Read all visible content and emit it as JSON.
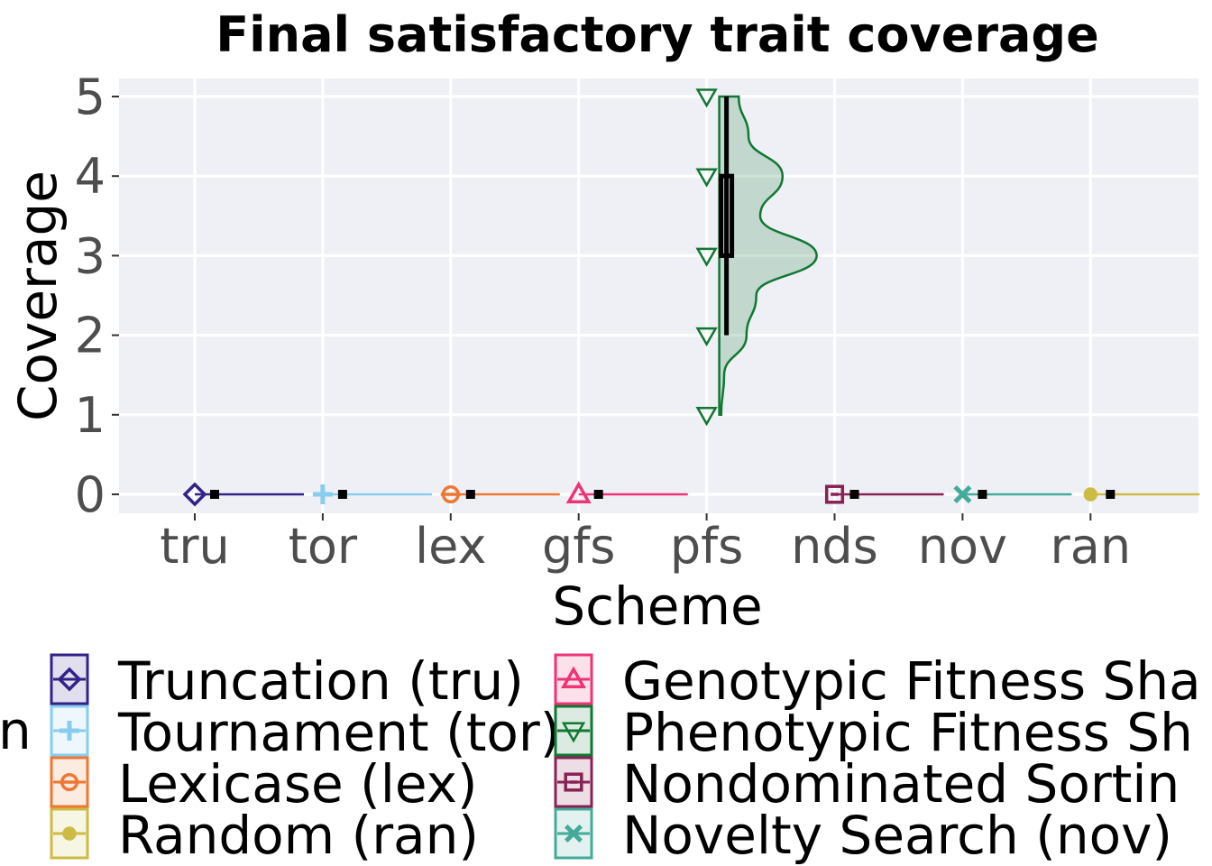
{
  "chart_data": {
    "type": "violin",
    "title": "Final satisfactory trait coverage",
    "xlabel": "Scheme",
    "ylabel": "Coverage",
    "ylim": [
      0,
      5
    ],
    "yticks": [
      "0",
      "1",
      "2",
      "3",
      "4",
      "5"
    ],
    "categories": [
      "tru",
      "tor",
      "lex",
      "gfs",
      "pfs",
      "nds",
      "nov",
      "ran"
    ],
    "series": [
      {
        "name": "Truncation (tru)",
        "key": "tru",
        "color": "#332288",
        "shape": "diamond",
        "points": [
          0
        ],
        "box": {
          "min": 0,
          "q1": 0,
          "median": 0,
          "q3": 0,
          "max": 0
        }
      },
      {
        "name": "Tournament (tor)",
        "key": "tor",
        "color": "#88CCEE",
        "shape": "plus",
        "points": [
          0
        ],
        "box": {
          "min": 0,
          "q1": 0,
          "median": 0,
          "q3": 0,
          "max": 0
        }
      },
      {
        "name": "Lexicase (lex)",
        "key": "lex",
        "color": "#EE7733",
        "shape": "circle-bar",
        "points": [
          0
        ],
        "box": {
          "min": 0,
          "q1": 0,
          "median": 0,
          "q3": 0,
          "max": 0
        }
      },
      {
        "name": "Genotypic Fitness Sharing (gfs)",
        "key": "gfs",
        "color": "#EE3377",
        "shape": "triangle-up",
        "points": [
          0
        ],
        "box": {
          "min": 0,
          "q1": 0,
          "median": 0,
          "q3": 0,
          "max": 0
        }
      },
      {
        "name": "Phenotypic Fitness Sharing (pfs)",
        "key": "pfs",
        "color": "#117733",
        "shape": "triangle-down",
        "points": [
          1,
          2,
          3,
          4,
          5
        ],
        "box": {
          "min": 2,
          "q1": 3,
          "median": 3,
          "q3": 4,
          "max": 5
        },
        "density": [
          [
            1,
            0.02
          ],
          [
            1.5,
            0.05
          ],
          [
            2,
            0.28
          ],
          [
            2.5,
            0.38
          ],
          [
            3,
            1.0
          ],
          [
            3.5,
            0.42
          ],
          [
            4,
            0.65
          ],
          [
            4.5,
            0.3
          ],
          [
            5,
            0.2
          ]
        ]
      },
      {
        "name": "Nondominated Sorting (nds)",
        "key": "nds",
        "color": "#882255",
        "shape": "square-bar",
        "points": [
          0
        ],
        "box": {
          "min": 0,
          "q1": 0,
          "median": 0,
          "q3": 0,
          "max": 0
        }
      },
      {
        "name": "Novelty Search (nov)",
        "key": "nov",
        "color": "#44AA99",
        "shape": "cross",
        "points": [
          0
        ],
        "box": {
          "min": 0,
          "q1": 0,
          "median": 0,
          "q3": 0,
          "max": 0
        }
      },
      {
        "name": "Random (ran)",
        "key": "ran",
        "color": "#CCBB44",
        "shape": "dot",
        "points": [
          0
        ],
        "box": {
          "min": 0,
          "q1": 0,
          "median": 0,
          "q3": 0,
          "max": 0
        }
      }
    ],
    "legend": {
      "title_fragment": "n",
      "placement": "bottom",
      "column1": [
        "Truncation (tru)",
        "Tournament (tor)",
        "Lexicase (lex)",
        "Random (ran)"
      ],
      "column2": [
        "Genotypic Fitness Sha",
        "Phenotypic Fitness Sh",
        "Nondominated Sortin",
        "Novelty Search (nov)"
      ],
      "column1_keys": [
        "tru",
        "tor",
        "lex",
        "ran"
      ],
      "column2_keys": [
        "gfs",
        "pfs",
        "nds",
        "nov"
      ]
    },
    "grid": true,
    "panel_background": "#EFF0F5"
  }
}
